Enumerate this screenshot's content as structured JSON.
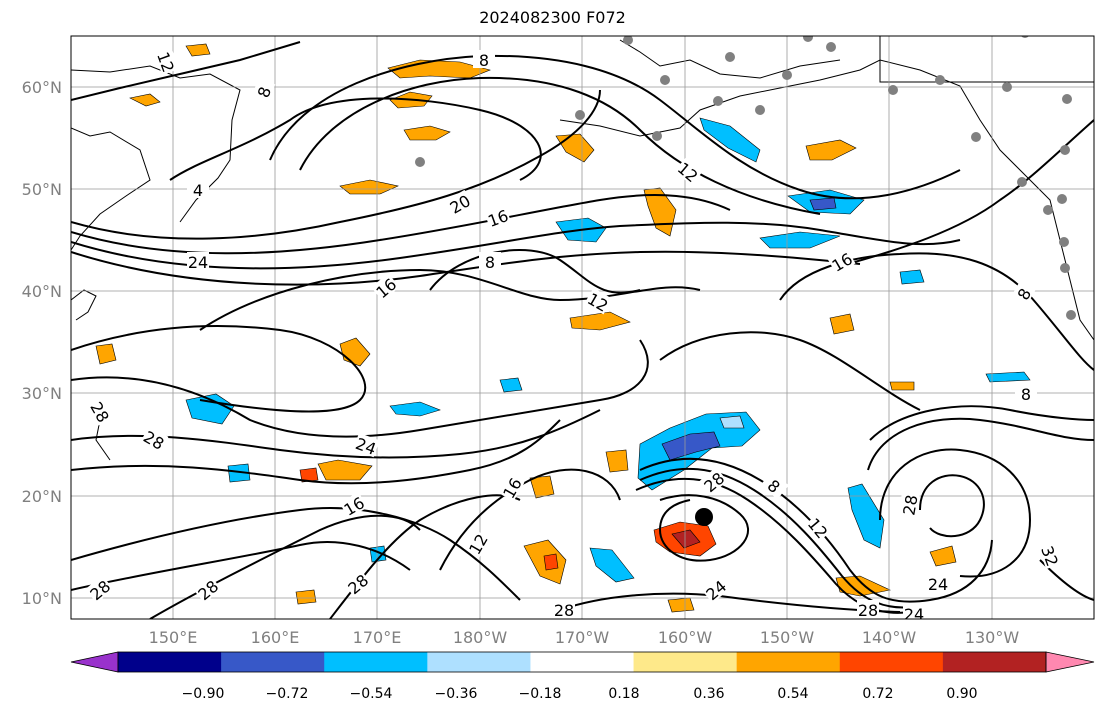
{
  "title": "2024082300 F072",
  "lat_labels": [
    "60°N",
    "50°N",
    "40°N",
    "30°N",
    "20°N",
    "10°N"
  ],
  "lon_labels": [
    "150°E",
    "160°E",
    "170°E",
    "180°W",
    "170°W",
    "160°W",
    "150°W",
    "140°W",
    "130°W"
  ],
  "colorbar": {
    "colors": [
      "#9932cc",
      "#00008b",
      "#3758c8",
      "#00bfff",
      "#aee0ff",
      "#ffffff",
      "#fee98a",
      "#ffa500",
      "#ff4500",
      "#b22222",
      "#ff88b0"
    ],
    "tick_labels": [
      "−0.90",
      "−0.72",
      "−0.54",
      "−0.36",
      "−0.18",
      "0.18",
      "0.36",
      "0.54",
      "0.72",
      "0.90"
    ]
  },
  "contour_labels": [
    "12",
    "8",
    "8",
    "4",
    "20",
    "16",
    "24",
    "16",
    "8",
    "12",
    "16",
    "8",
    "12",
    "28",
    "28",
    "24",
    "16",
    "16",
    "12",
    "28",
    "28",
    "28",
    "8",
    "12",
    "28",
    "24",
    "28",
    "24",
    "24",
    "28",
    "32",
    "8",
    "28"
  ],
  "storm_center": {
    "lat": 18,
    "lon": -158
  }
}
